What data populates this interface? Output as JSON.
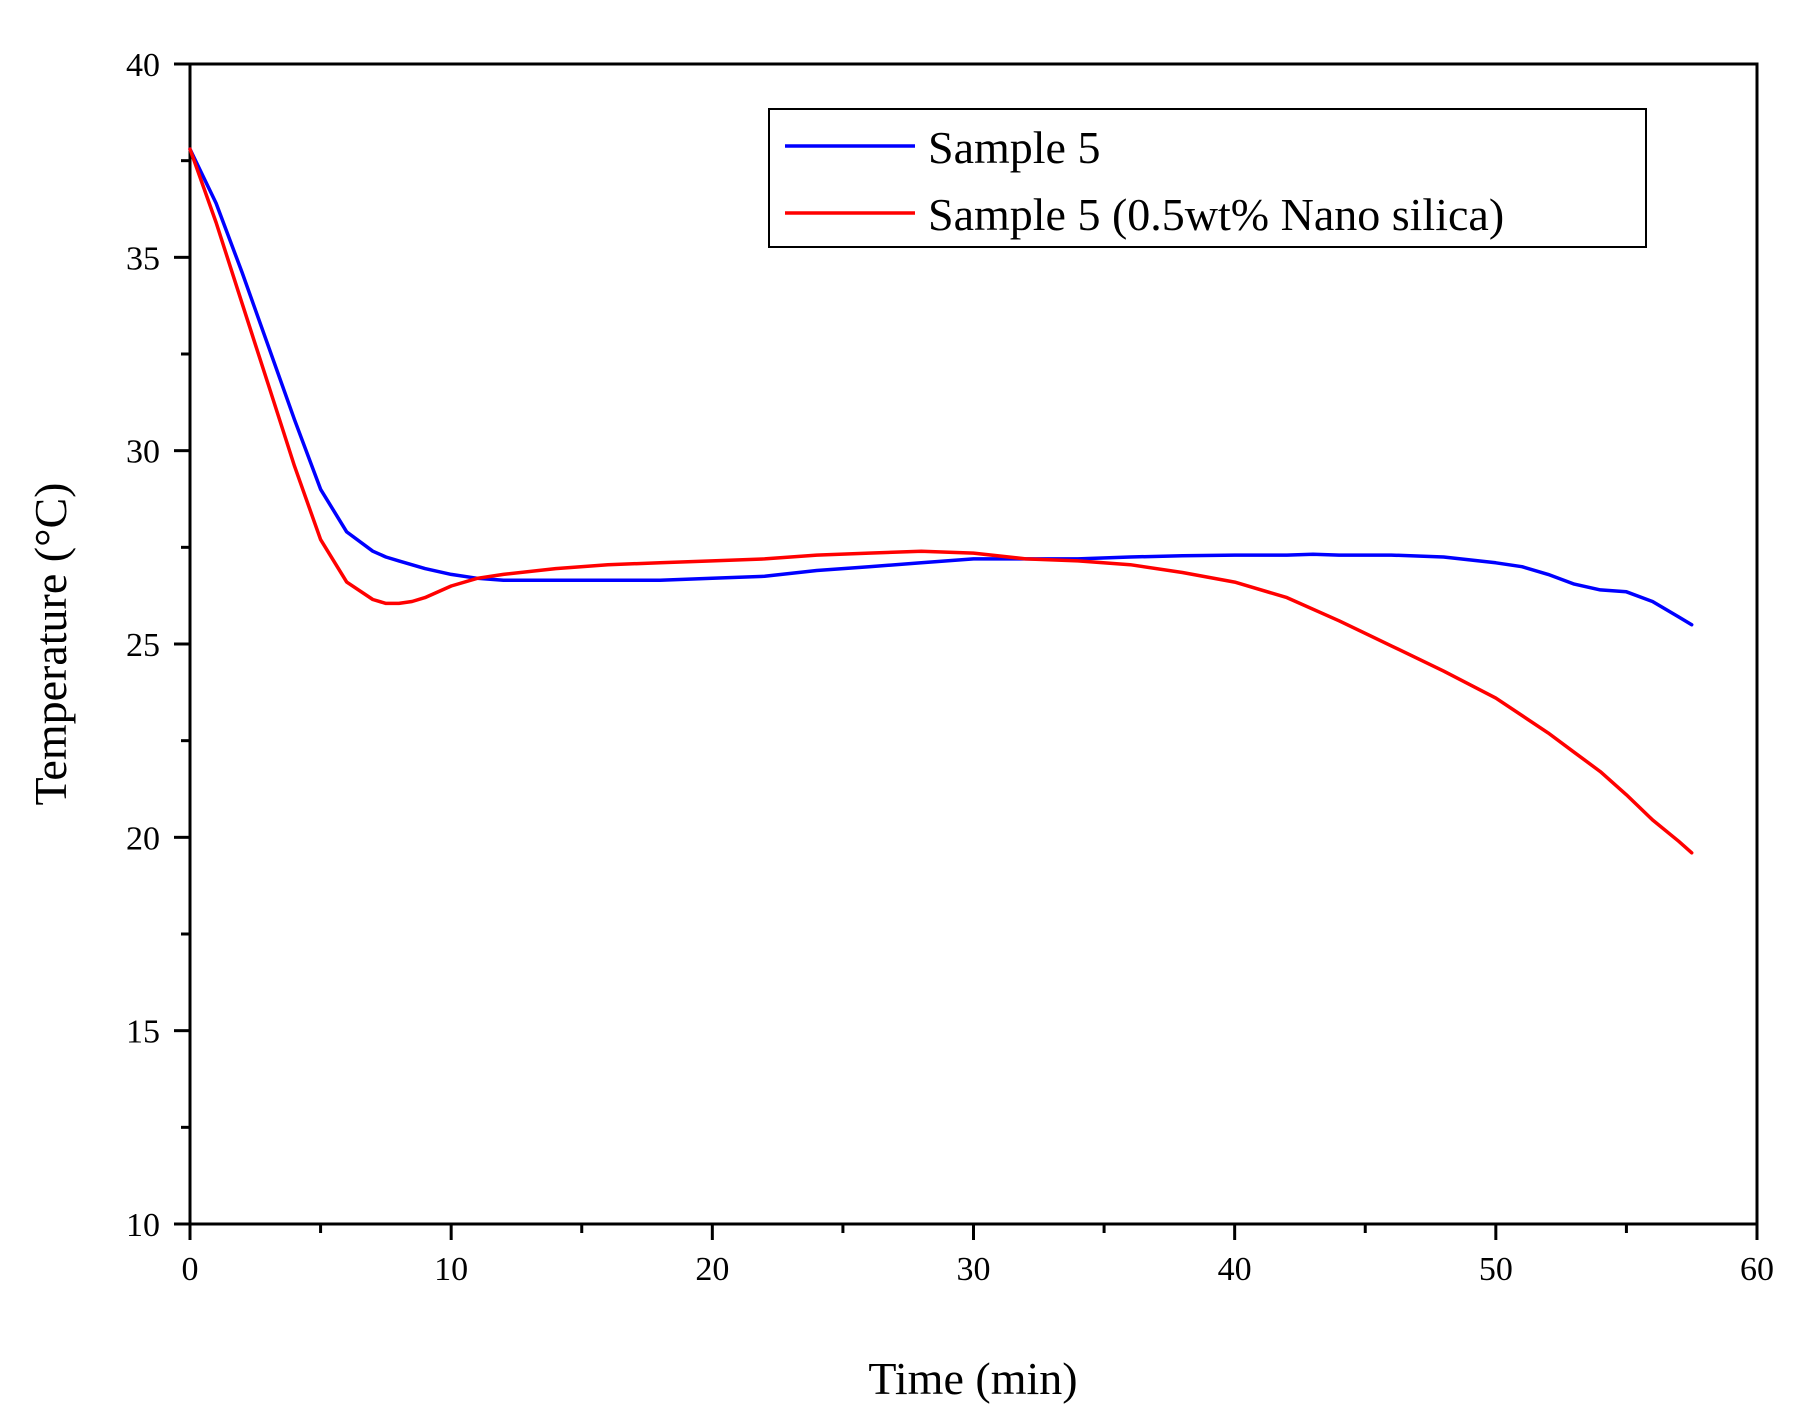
{
  "chart_data": {
    "type": "line",
    "title": "",
    "xlabel": "Time (min)",
    "ylabel": "Temperature (°C)",
    "xlim": [
      0,
      60
    ],
    "ylim": [
      10,
      40
    ],
    "xticks": [
      0,
      10,
      20,
      30,
      40,
      50,
      60
    ],
    "yticks": [
      10,
      15,
      20,
      25,
      30,
      35,
      40
    ],
    "grid": false,
    "legend_position": "top-right",
    "series": [
      {
        "name": "Sample 5",
        "color": "#0000ff",
        "x": [
          0,
          1,
          2,
          3,
          4,
          5,
          6,
          7,
          7.5,
          8,
          9,
          10,
          11,
          12,
          14,
          16,
          18,
          20,
          22,
          24,
          26,
          28,
          30,
          32,
          34,
          36,
          38,
          40,
          42,
          43,
          44,
          46,
          48,
          50,
          51,
          52,
          53,
          54,
          55,
          56,
          57,
          57.5
        ],
        "y": [
          37.8,
          36.4,
          34.6,
          32.7,
          30.8,
          29.0,
          27.9,
          27.4,
          27.25,
          27.15,
          26.95,
          26.8,
          26.7,
          26.65,
          26.65,
          26.65,
          26.65,
          26.7,
          26.75,
          26.9,
          27.0,
          27.1,
          27.2,
          27.2,
          27.2,
          27.25,
          27.28,
          27.3,
          27.3,
          27.32,
          27.3,
          27.3,
          27.25,
          27.1,
          27.0,
          26.8,
          26.55,
          26.4,
          26.35,
          26.1,
          25.7,
          25.5
        ]
      },
      {
        "name": "Sample 5 (0.5wt% Nano silica)",
        "color": "#ff0000",
        "x": [
          0,
          1,
          2,
          3,
          4,
          5,
          6,
          7,
          7.5,
          8,
          8.5,
          9,
          10,
          11,
          12,
          14,
          16,
          18,
          20,
          22,
          24,
          26,
          28,
          30,
          32,
          34,
          36,
          38,
          40,
          42,
          44,
          46,
          48,
          50,
          52,
          53,
          54,
          55,
          56,
          57,
          57.5
        ],
        "y": [
          37.8,
          35.9,
          33.8,
          31.7,
          29.6,
          27.7,
          26.6,
          26.15,
          26.05,
          26.05,
          26.1,
          26.2,
          26.5,
          26.7,
          26.8,
          26.95,
          27.05,
          27.1,
          27.15,
          27.2,
          27.3,
          27.35,
          27.4,
          27.35,
          27.2,
          27.15,
          27.05,
          26.85,
          26.6,
          26.2,
          25.6,
          24.95,
          24.3,
          23.6,
          22.7,
          22.2,
          21.7,
          21.1,
          20.45,
          19.9,
          19.6
        ]
      }
    ]
  }
}
